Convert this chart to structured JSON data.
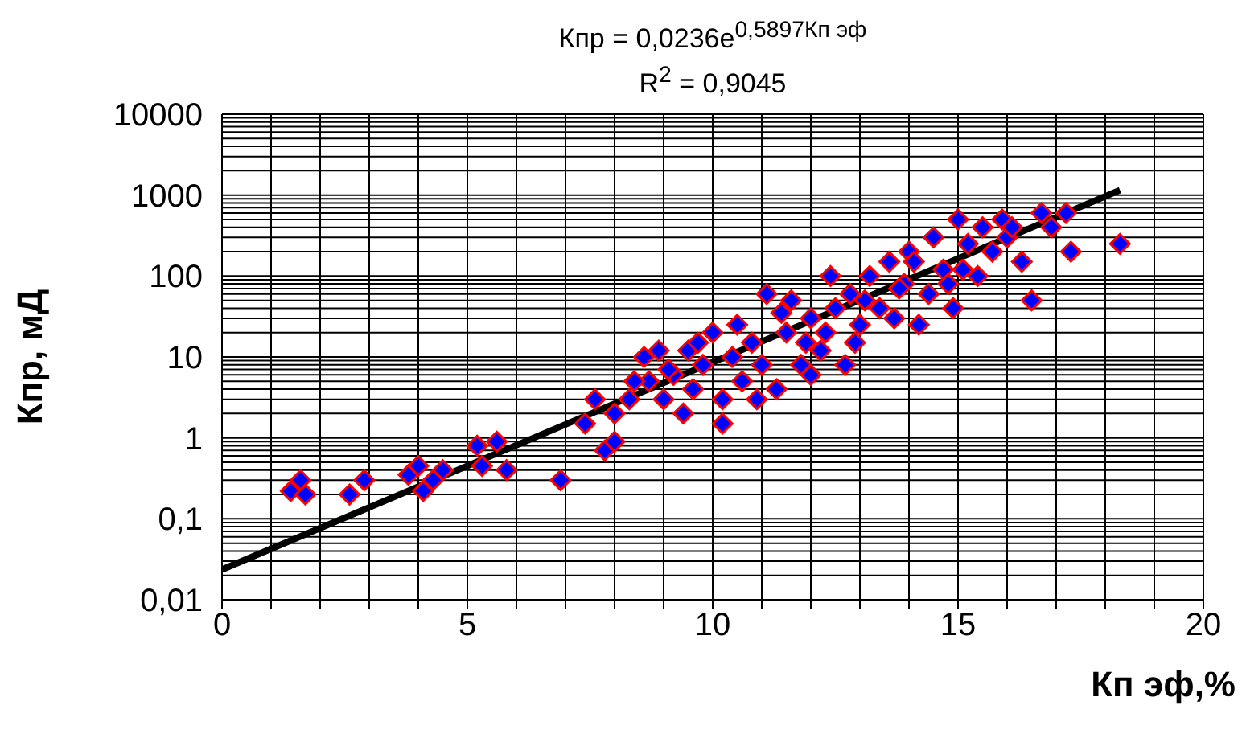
{
  "chart_data": {
    "type": "scatter",
    "title": "Кпр = 0,0236e$^{0,5897Кп эф}$",
    "subtitle": "R$^{2}$ = 0,9045",
    "xlabel": "Кп эф,%",
    "ylabel": "Кпр, мД",
    "log": "y",
    "grid": true,
    "marker": "diamond",
    "xlim": [
      0,
      20
    ],
    "xticks": [
      0,
      {
        "value": 1,
        "label": null
      },
      {
        "value": 2,
        "label": null
      },
      {
        "value": 3,
        "label": null
      },
      {
        "value": 4,
        "label": null
      },
      5,
      {
        "value": 6,
        "label": null
      },
      {
        "value": 7,
        "label": null
      },
      {
        "value": 8,
        "label": null
      },
      {
        "value": 9,
        "label": null
      },
      10,
      {
        "value": 11,
        "label": null
      },
      {
        "value": 12,
        "label": null
      },
      {
        "value": 13,
        "label": null
      },
      {
        "value": 14,
        "label": null
      },
      15,
      {
        "value": 16,
        "label": null
      },
      {
        "value": 17,
        "label": null
      },
      {
        "value": 18,
        "label": null
      },
      {
        "value": 19,
        "label": null
      },
      20
    ],
    "ylim": [
      0.01,
      10000
    ],
    "yticks": [
      {
        "value": 0.01,
        "label": "0,01"
      },
      {
        "value": 0.02,
        "label": null
      },
      {
        "value": 0.03,
        "label": null
      },
      {
        "value": 0.04,
        "label": null
      },
      {
        "value": 0.05,
        "label": null
      },
      {
        "value": 0.06,
        "label": null
      },
      {
        "value": 0.07,
        "label": null
      },
      {
        "value": 0.08,
        "label": null
      },
      {
        "value": 0.09,
        "label": null
      },
      {
        "value": 0.1,
        "label": "0,1"
      },
      {
        "value": 0.2,
        "label": null
      },
      {
        "value": 0.3,
        "label": null
      },
      {
        "value": 0.4,
        "label": null
      },
      {
        "value": 0.5,
        "label": null
      },
      {
        "value": 0.6,
        "label": null
      },
      {
        "value": 0.7,
        "label": null
      },
      {
        "value": 0.8,
        "label": null
      },
      {
        "value": 0.9,
        "label": null
      },
      1,
      {
        "value": 2,
        "label": null
      },
      {
        "value": 3,
        "label": null
      },
      {
        "value": 4,
        "label": null
      },
      {
        "value": 5,
        "label": null
      },
      {
        "value": 6,
        "label": null
      },
      {
        "value": 7,
        "label": null
      },
      {
        "value": 8,
        "label": null
      },
      {
        "value": 9,
        "label": null
      },
      10,
      {
        "value": 20,
        "label": null
      },
      {
        "value": 30,
        "label": null
      },
      {
        "value": 40,
        "label": null
      },
      {
        "value": 50,
        "label": null
      },
      {
        "value": 60,
        "label": null
      },
      {
        "value": 70,
        "label": null
      },
      {
        "value": 80,
        "label": null
      },
      {
        "value": 90,
        "label": null
      },
      100,
      {
        "value": 200,
        "label": null
      },
      {
        "value": 300,
        "label": null
      },
      {
        "value": 400,
        "label": null
      },
      {
        "value": 500,
        "label": null
      },
      {
        "value": 600,
        "label": null
      },
      {
        "value": 700,
        "label": null
      },
      {
        "value": 800,
        "label": null
      },
      {
        "value": 900,
        "label": null
      },
      1000,
      {
        "value": 2000,
        "label": null
      },
      {
        "value": 3000,
        "label": null
      },
      {
        "value": 4000,
        "label": null
      },
      {
        "value": 5000,
        "label": null
      },
      {
        "value": 6000,
        "label": null
      },
      {
        "value": 7000,
        "label": null
      },
      {
        "value": 8000,
        "label": null
      },
      {
        "value": 9000,
        "label": null
      },
      10000
    ],
    "series": [
      {
        "color": "#0000ff",
        "x": [
          1.4,
          1.6,
          1.7,
          2.6,
          2.9,
          3.8,
          4.0,
          4.1,
          4.3,
          4.5,
          5.2,
          5.3,
          5.6,
          5.8,
          6.9,
          7.4,
          7.6,
          7.8,
          8.0,
          8.0,
          8.3,
          8.6,
          8.7,
          8.9,
          9.0,
          9.2,
          9.4,
          9.5,
          9.6,
          9.8,
          10.0,
          10.2,
          10.2,
          10.4,
          10.6,
          10.8,
          11.0,
          11.1,
          11.3,
          11.5,
          11.6,
          11.8,
          12.0,
          12.0,
          12.2,
          12.4,
          12.5,
          12.7,
          12.8,
          13.0,
          13.2,
          13.4,
          13.6,
          13.7,
          13.9,
          14.0,
          14.2,
          14.4,
          14.5,
          14.7,
          14.9,
          15.0,
          15.2,
          15.4,
          15.5,
          15.7,
          15.9,
          16.0,
          16.3,
          16.5,
          16.7,
          16.9,
          17.2,
          17.3,
          18.3,
          9.1,
          10.5,
          11.4,
          12.3,
          13.1,
          14.1,
          15.1,
          8.4,
          9.7,
          10.9,
          11.9,
          12.9,
          13.8,
          14.8,
          16.1
        ],
        "values": [
          0.22,
          0.3,
          0.2,
          0.2,
          0.3,
          0.35,
          0.45,
          0.22,
          0.3,
          0.4,
          0.8,
          0.45,
          0.9,
          0.4,
          0.3,
          1.5,
          3,
          0.7,
          0.9,
          2,
          3,
          10,
          5,
          12,
          3,
          6,
          2,
          12,
          4,
          8,
          20,
          3,
          1.5,
          10,
          5,
          15,
          8,
          60,
          4,
          20,
          50,
          8,
          30,
          6,
          12,
          100,
          40,
          8,
          60,
          25,
          100,
          40,
          150,
          30,
          80,
          200,
          25,
          60,
          300,
          120,
          40,
          500,
          250,
          100,
          400,
          200,
          500,
          300,
          150,
          50,
          600,
          400,
          600,
          200,
          250,
          7,
          25,
          35,
          20,
          50,
          150,
          120,
          5,
          15,
          3,
          15,
          15,
          70,
          80,
          400
        ]
      },
      {
        "type": "line",
        "color": "#000000",
        "marker": "none",
        "x": [
          0,
          18.3
        ],
        "values": [
          0.0236,
          1150
        ]
      }
    ]
  }
}
